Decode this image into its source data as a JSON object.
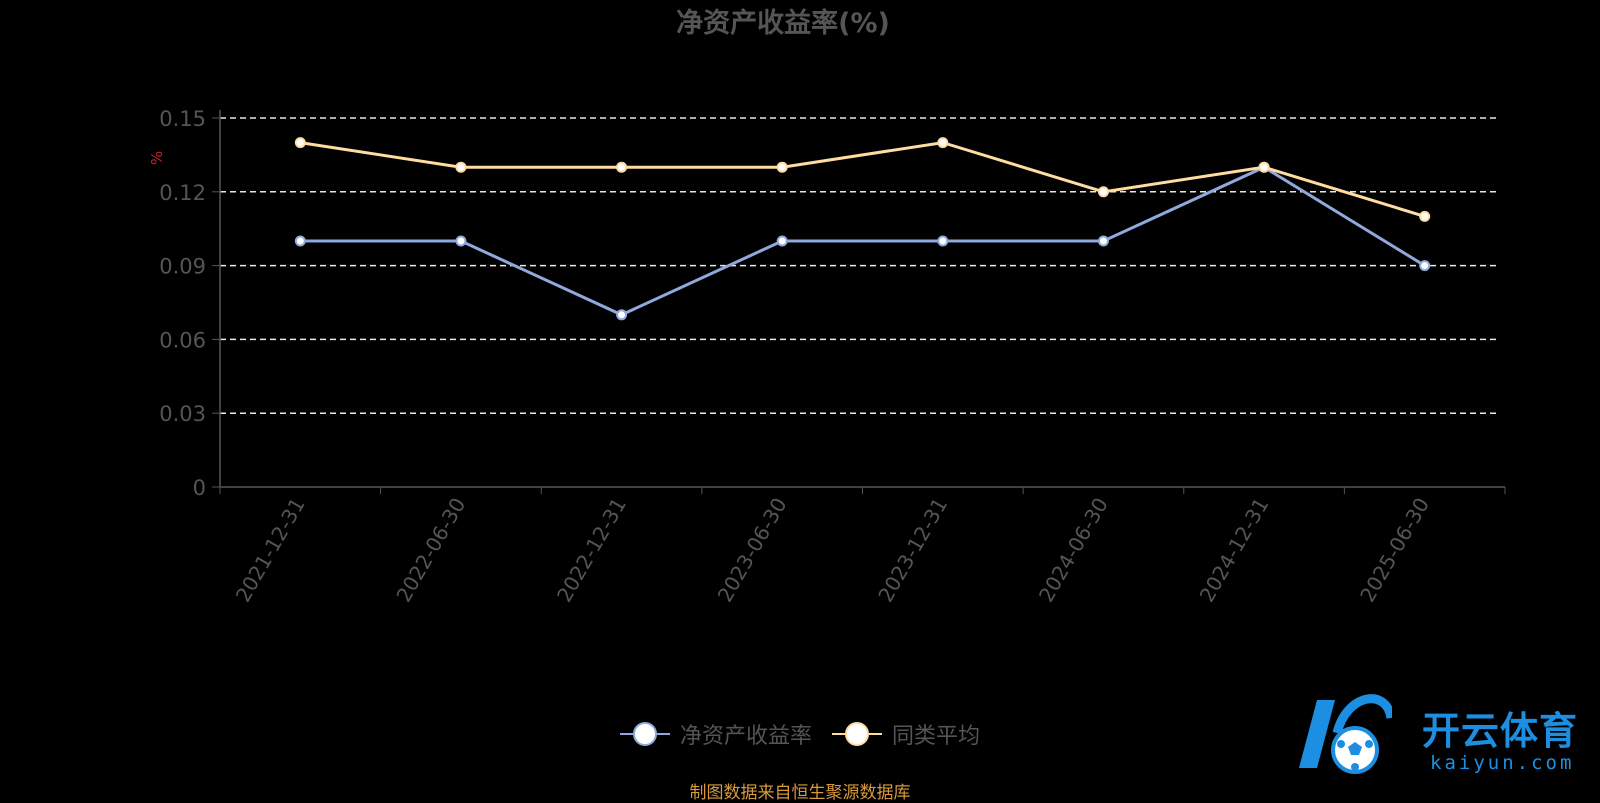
{
  "chart_data": {
    "type": "line",
    "title": "净资产收益率(%)",
    "ylabel": "%",
    "categories": [
      "2021-12-31",
      "2022-06-30",
      "2022-12-31",
      "2023-06-30",
      "2023-12-31",
      "2024-06-30",
      "2024-12-31",
      "2025-06-30"
    ],
    "ylim": [
      0,
      0.15
    ],
    "yticks": [
      "0",
      "0.03",
      "0.06",
      "0.09",
      "0.12",
      "0.15"
    ],
    "grid": true,
    "legend_position": "bottom",
    "series": [
      {
        "name": "净资产收益率",
        "color": "#8fa9dc",
        "values": [
          0.1,
          0.1,
          0.07,
          0.1,
          0.1,
          0.1,
          0.13,
          0.09
        ]
      },
      {
        "name": "同类平均",
        "color": "#ffdca0",
        "values": [
          0.14,
          0.13,
          0.13,
          0.13,
          0.14,
          0.12,
          0.13,
          0.11
        ]
      }
    ]
  },
  "source_note": "制图数据来自恒生聚源数据库",
  "watermark": {
    "cn": "开云体育",
    "en": "kaiyun.com",
    "color": "#1c8fe3",
    "icon": "soccer-ball-logo-icon"
  }
}
